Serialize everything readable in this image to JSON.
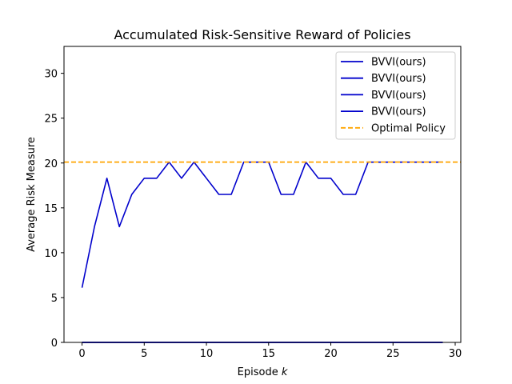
{
  "chart_data": {
    "type": "line",
    "title": "Accumulated Risk-Sensitive Reward of Policies",
    "xlabel_text": "Episode ",
    "xlabel_var": "k",
    "ylabel": "Average Risk Measure",
    "xlim": [
      -1.45,
      30.45
    ],
    "ylim": [
      0,
      33
    ],
    "xticks": [
      0,
      5,
      10,
      15,
      20,
      25,
      30
    ],
    "yticks": [
      0,
      5,
      10,
      15,
      20,
      25,
      30
    ],
    "grid": false,
    "legend_position": "top-right",
    "series": [
      {
        "name": "BVVI(ours)",
        "color": "#0000cc",
        "style": "solid",
        "x": [
          0,
          1,
          2,
          3,
          4,
          5,
          6,
          7,
          8,
          9,
          10,
          11,
          12,
          13,
          14,
          15,
          16,
          17,
          18,
          19,
          20,
          21,
          22,
          23,
          24,
          25,
          26,
          27,
          28,
          29
        ],
        "y": [
          6.1,
          12.9,
          18.3,
          12.9,
          16.5,
          18.3,
          18.3,
          20.1,
          18.3,
          20.1,
          18.3,
          16.5,
          16.5,
          20.1,
          20.1,
          20.1,
          16.5,
          16.5,
          20.1,
          18.3,
          18.3,
          16.5,
          16.5,
          20.1,
          20.1,
          20.1,
          20.1,
          20.1,
          20.1,
          20.1
        ]
      },
      {
        "name": "BVVI(ours)",
        "color": "#0000cc",
        "style": "solid",
        "x": [
          0,
          1,
          2,
          3,
          4,
          5,
          6,
          7,
          8,
          9,
          10,
          11,
          12,
          13,
          14,
          15,
          16,
          17,
          18,
          19,
          20,
          21,
          22,
          23,
          24,
          25,
          26,
          27,
          28,
          29
        ],
        "y": [
          0,
          0,
          0,
          0,
          0,
          0,
          0,
          0,
          0,
          0,
          0,
          0,
          0,
          0,
          0,
          0,
          0,
          0,
          0,
          0,
          0,
          0,
          0,
          0,
          0,
          0,
          0,
          0,
          0,
          0
        ]
      },
      {
        "name": "BVVI(ours)",
        "color": "#0000cc",
        "style": "solid",
        "x": [
          0,
          1,
          2,
          3,
          4,
          5,
          6,
          7,
          8,
          9,
          10,
          11,
          12,
          13,
          14,
          15,
          16,
          17,
          18,
          19,
          20,
          21,
          22,
          23,
          24,
          25,
          26,
          27,
          28,
          29
        ],
        "y": [
          0,
          0,
          0,
          0,
          0,
          0,
          0,
          0,
          0,
          0,
          0,
          0,
          0,
          0,
          0,
          0,
          0,
          0,
          0,
          0,
          0,
          0,
          0,
          0,
          0,
          0,
          0,
          0,
          0,
          0
        ]
      },
      {
        "name": "BVVI(ours)",
        "color": "#0000cc",
        "style": "solid",
        "x": [
          0,
          1,
          2,
          3,
          4,
          5,
          6,
          7,
          8,
          9,
          10,
          11,
          12,
          13,
          14,
          15,
          16,
          17,
          18,
          19,
          20,
          21,
          22,
          23,
          24,
          25,
          26,
          27,
          28,
          29
        ],
        "y": [
          0,
          0,
          0,
          0,
          0,
          0,
          0,
          0,
          0,
          0,
          0,
          0,
          0,
          0,
          0,
          0,
          0,
          0,
          0,
          0,
          0,
          0,
          0,
          0,
          0,
          0,
          0,
          0,
          0,
          0
        ]
      },
      {
        "name": "Optimal Policy",
        "color": "#ffa500",
        "style": "dashed",
        "hline": 20.1
      }
    ]
  }
}
